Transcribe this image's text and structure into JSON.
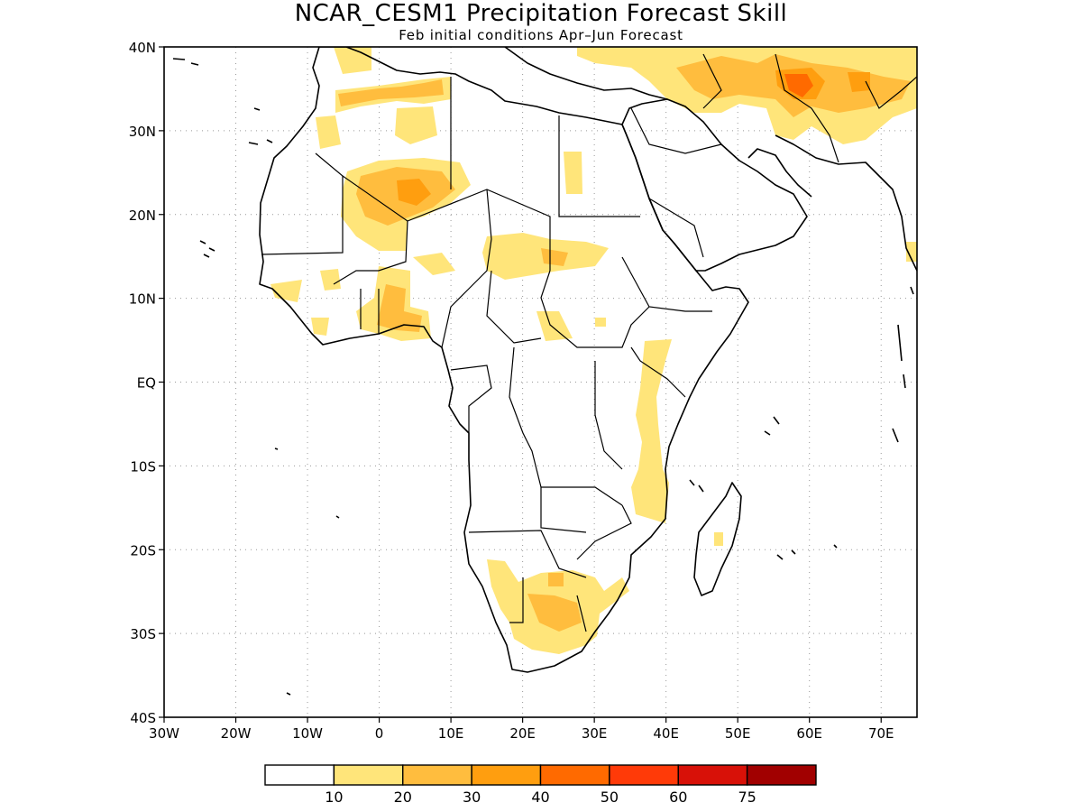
{
  "title": "NCAR_CESM1 Precipitation Forecast Skill",
  "subtitle": "Feb initial conditions  Apr–Jun Forecast",
  "map": {
    "lon_range": [
      -30,
      75
    ],
    "lat_range": [
      -40,
      40
    ],
    "lon_ticks": [
      {
        "value": -30,
        "label": "30W"
      },
      {
        "value": -20,
        "label": "20W"
      },
      {
        "value": -10,
        "label": "10W"
      },
      {
        "value": 0,
        "label": "0"
      },
      {
        "value": 10,
        "label": "10E"
      },
      {
        "value": 20,
        "label": "20E"
      },
      {
        "value": 30,
        "label": "30E"
      },
      {
        "value": 40,
        "label": "40E"
      },
      {
        "value": 50,
        "label": "50E"
      },
      {
        "value": 60,
        "label": "60E"
      },
      {
        "value": 70,
        "label": "70E"
      }
    ],
    "lat_ticks": [
      {
        "value": 40,
        "label": "40N"
      },
      {
        "value": 30,
        "label": "30N"
      },
      {
        "value": 20,
        "label": "20N"
      },
      {
        "value": 10,
        "label": "10N"
      },
      {
        "value": 0,
        "label": "EQ"
      },
      {
        "value": -10,
        "label": "10S"
      },
      {
        "value": -20,
        "label": "20S"
      },
      {
        "value": -30,
        "label": "30S"
      },
      {
        "value": -40,
        "label": "40S"
      }
    ],
    "grid": true
  },
  "colorbar": {
    "colors": [
      "#ffffff",
      "#ffe57a",
      "#ffbd3e",
      "#ff9e0f",
      "#ff6a00",
      "#ff3a08",
      "#d81108",
      "#a10000"
    ],
    "labels": [
      "10",
      "20",
      "30",
      "40",
      "50",
      "60",
      "75"
    ]
  }
}
